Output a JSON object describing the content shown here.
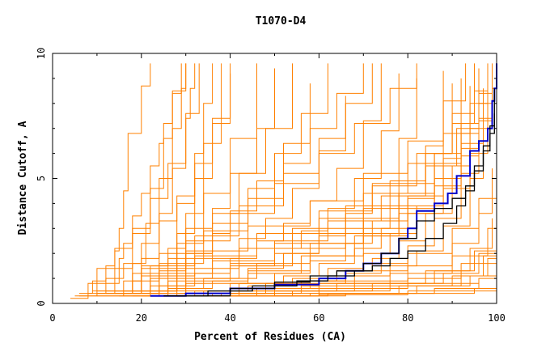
{
  "chart_data": {
    "type": "line",
    "title": "T1070-D4",
    "xlabel": "Percent of Residues (CA)",
    "ylabel": "Distance Cutoff, A",
    "xlim": [
      0,
      100
    ],
    "ylim": [
      0,
      10
    ],
    "x_ticks": [
      "0",
      "20",
      "40",
      "60",
      "80",
      "100"
    ],
    "y_ticks": [
      "0",
      "5",
      "10"
    ],
    "grid": false,
    "legend": "none",
    "colors": {
      "background_models": "#ff8000",
      "highlight_blue": "#0000cc",
      "highlight_black": "#000000"
    },
    "highlight_series": [
      {
        "color": "#0000cc",
        "x": [
          22,
          30,
          40,
          50,
          60,
          66,
          70,
          74,
          78,
          80,
          82,
          86,
          89,
          91,
          94,
          96,
          98,
          99,
          99.5,
          100
        ],
        "y": [
          0.3,
          0.4,
          0.6,
          0.75,
          1.0,
          1.3,
          1.6,
          2.0,
          2.6,
          3.0,
          3.7,
          4.0,
          4.4,
          5.1,
          6.1,
          6.5,
          7.0,
          8.1,
          8.6,
          9.6
        ]
      },
      {
        "color": "#000000",
        "x": [
          25,
          35,
          45,
          55,
          62,
          68,
          72,
          76,
          80,
          84,
          88,
          91,
          93,
          95,
          97,
          98.5,
          99.5
        ],
        "y": [
          0.3,
          0.5,
          0.7,
          0.9,
          1.1,
          1.3,
          1.5,
          1.8,
          2.1,
          2.6,
          3.2,
          3.9,
          4.5,
          5.3,
          6.1,
          6.8,
          7.6
        ]
      },
      {
        "color": "#000000",
        "x": [
          28,
          40,
          50,
          58,
          64,
          70,
          74,
          78,
          82,
          86,
          90,
          93,
          95,
          97,
          98.5,
          99.5
        ],
        "y": [
          0.3,
          0.6,
          0.85,
          1.1,
          1.3,
          1.6,
          2.0,
          2.6,
          3.3,
          3.8,
          4.2,
          4.7,
          5.5,
          6.3,
          7.1,
          8.6
        ]
      }
    ],
    "background_series": [
      {
        "x": [
          5,
          10,
          15,
          16,
          18,
          20,
          22,
          24,
          25,
          27,
          30
        ],
        "y": [
          0.3,
          0.8,
          1.8,
          2.4,
          3.5,
          4.4,
          5.5,
          6.4,
          7.2,
          8.5,
          9.6
        ]
      },
      {
        "x": [
          6,
          9,
          12,
          14,
          15,
          16,
          17,
          20,
          22
        ],
        "y": [
          0.4,
          0.9,
          1.5,
          2.1,
          3.0,
          4.5,
          6.8,
          8.7,
          9.6
        ]
      },
      {
        "x": [
          4,
          8,
          10,
          14,
          18,
          22,
          26,
          30,
          33
        ],
        "y": [
          0.2,
          0.8,
          1.4,
          2.2,
          3.0,
          4.2,
          5.6,
          7.6,
          9.6
        ]
      },
      {
        "x": [
          8,
          12,
          16,
          20,
          24,
          28,
          32,
          36,
          40
        ],
        "y": [
          0.4,
          1.0,
          1.6,
          2.4,
          3.3,
          4.3,
          5.6,
          7.2,
          9.2
        ]
      },
      {
        "x": [
          10,
          16,
          20,
          26,
          30,
          36,
          40,
          46,
          50
        ],
        "y": [
          0.3,
          0.9,
          1.5,
          2.2,
          3.0,
          3.8,
          5.2,
          7.0,
          9.4
        ]
      },
      {
        "x": [
          12,
          18,
          24,
          30,
          36,
          40,
          46,
          52,
          58
        ],
        "y": [
          0.4,
          0.9,
          1.3,
          2.0,
          2.8,
          3.7,
          4.9,
          6.4,
          8.8
        ]
      },
      {
        "x": [
          15,
          22,
          30,
          36,
          42,
          48,
          54,
          60,
          66
        ],
        "y": [
          0.3,
          0.7,
          1.2,
          1.8,
          2.6,
          3.4,
          4.6,
          6.1,
          8.3
        ]
      },
      {
        "x": [
          16,
          24,
          32,
          40,
          46,
          52,
          58,
          64,
          70,
          74
        ],
        "y": [
          0.3,
          0.7,
          1.2,
          1.8,
          2.5,
          3.2,
          4.1,
          5.4,
          7.3,
          9.6
        ]
      },
      {
        "x": [
          18,
          26,
          34,
          42,
          50,
          56,
          62,
          68,
          74,
          78
        ],
        "y": [
          0.3,
          0.6,
          1.0,
          1.5,
          2.2,
          2.9,
          3.8,
          5.0,
          6.9,
          9.2
        ]
      },
      {
        "x": [
          20,
          28,
          36,
          44,
          52,
          60,
          66,
          72,
          78,
          82
        ],
        "y": [
          0.3,
          0.6,
          0.9,
          1.4,
          2.0,
          2.7,
          3.6,
          4.8,
          6.6,
          9.0
        ]
      },
      {
        "x": [
          20,
          30,
          40,
          50,
          58,
          66,
          72,
          78,
          84,
          88
        ],
        "y": [
          0.3,
          0.5,
          0.8,
          1.2,
          1.7,
          2.4,
          3.3,
          4.4,
          6.3,
          9.3
        ]
      },
      {
        "x": [
          22,
          32,
          42,
          52,
          60,
          68,
          74,
          80,
          86,
          90
        ],
        "y": [
          0.3,
          0.5,
          0.8,
          1.1,
          1.6,
          2.2,
          3.0,
          4.2,
          6.0,
          8.8
        ]
      },
      {
        "x": [
          24,
          34,
          44,
          54,
          62,
          70,
          76,
          82,
          88,
          92
        ],
        "y": [
          0.3,
          0.5,
          0.7,
          1.0,
          1.4,
          2.0,
          2.8,
          3.9,
          5.8,
          9.0
        ]
      },
      {
        "x": [
          26,
          36,
          46,
          56,
          64,
          72,
          78,
          84,
          90,
          94
        ],
        "y": [
          0.3,
          0.4,
          0.6,
          0.9,
          1.3,
          1.8,
          2.5,
          3.6,
          5.5,
          8.7
        ]
      },
      {
        "x": [
          28,
          38,
          48,
          58,
          66,
          74,
          80,
          86,
          92,
          96
        ],
        "y": [
          0.3,
          0.4,
          0.6,
          0.9,
          1.2,
          1.6,
          2.3,
          3.4,
          5.2,
          9.4
        ]
      },
      {
        "x": [
          30,
          40,
          50,
          60,
          68,
          76,
          82,
          88,
          94,
          97
        ],
        "y": [
          0.3,
          0.4,
          0.6,
          0.8,
          1.1,
          1.5,
          2.1,
          3.1,
          5.0,
          8.4
        ]
      },
      {
        "x": [
          20,
          40,
          60,
          80,
          90,
          96,
          99
        ],
        "y": [
          0.3,
          0.5,
          0.9,
          1.5,
          2.4,
          3.6,
          5.4
        ]
      },
      {
        "x": [
          20,
          42,
          64,
          84,
          94,
          99
        ],
        "y": [
          0.3,
          0.5,
          0.8,
          1.3,
          2.2,
          3.4
        ]
      },
      {
        "x": [
          24,
          46,
          68,
          86,
          95,
          100
        ],
        "y": [
          0.3,
          0.5,
          0.8,
          1.3,
          2.1,
          4.6
        ]
      },
      {
        "x": [
          26,
          50,
          72,
          88,
          96,
          100
        ],
        "y": [
          0.3,
          0.5,
          0.8,
          1.2,
          2.0,
          3.2
        ]
      },
      {
        "x": [
          30,
          54,
          76,
          90,
          97,
          100
        ],
        "y": [
          0.3,
          0.5,
          0.7,
          1.1,
          1.9,
          2.8
        ]
      },
      {
        "x": [
          34,
          58,
          78,
          92,
          98,
          100
        ],
        "y": [
          0.3,
          0.4,
          0.7,
          1.1,
          1.8,
          2.4
        ]
      },
      {
        "x": [
          38,
          62,
          82,
          94,
          100
        ],
        "y": [
          0.3,
          0.4,
          0.7,
          1.1,
          2.0
        ]
      },
      {
        "x": [
          42,
          66,
          86,
          96,
          100
        ],
        "y": [
          0.3,
          0.4,
          0.6,
          1.0,
          1.6
        ]
      },
      {
        "x": [
          36,
          60,
          80,
          92,
          100
        ],
        "y": [
          0.4,
          0.6,
          1.0,
          1.6,
          3.0
        ]
      },
      {
        "x": [
          32,
          56,
          76,
          90,
          98,
          100
        ],
        "y": [
          0.4,
          0.7,
          1.2,
          1.9,
          3.0,
          4.0
        ]
      },
      {
        "x": [
          28,
          48,
          66,
          80,
          90,
          96,
          100
        ],
        "y": [
          0.4,
          0.8,
          1.3,
          2.0,
          3.0,
          4.2,
          5.6
        ]
      },
      {
        "x": [
          18,
          30,
          44,
          58,
          70,
          80,
          88,
          94,
          98
        ],
        "y": [
          0.4,
          0.8,
          1.3,
          1.9,
          2.7,
          3.6,
          4.6,
          6.0,
          8.0
        ]
      },
      {
        "x": [
          14,
          26,
          40,
          54,
          66,
          76,
          86,
          92,
          97
        ],
        "y": [
          0.4,
          0.9,
          1.5,
          2.2,
          3.0,
          3.9,
          5.0,
          6.4,
          8.6
        ]
      },
      {
        "x": [
          12,
          22,
          36,
          50,
          62,
          74,
          84,
          91,
          96
        ],
        "y": [
          0.4,
          1.0,
          1.7,
          2.5,
          3.3,
          4.3,
          5.5,
          7.0,
          9.2
        ]
      },
      {
        "x": [
          10,
          20,
          32,
          46,
          60,
          72,
          82,
          90,
          95
        ],
        "y": [
          0.4,
          1.1,
          1.9,
          2.8,
          3.7,
          4.7,
          6.0,
          7.6,
          9.6
        ]
      },
      {
        "x": [
          9,
          18,
          30,
          44,
          58,
          70,
          80,
          88,
          93
        ],
        "y": [
          0.5,
          1.2,
          2.1,
          3.1,
          4.1,
          5.2,
          6.5,
          8.1,
          9.6
        ]
      },
      {
        "x": [
          10,
          20,
          30,
          40,
          50,
          60,
          68,
          76,
          82
        ],
        "y": [
          0.5,
          1.4,
          2.5,
          3.6,
          4.8,
          6.0,
          7.2,
          8.6,
          9.6
        ]
      },
      {
        "x": [
          12,
          22,
          32,
          42,
          52,
          60,
          66,
          72
        ],
        "y": [
          0.5,
          1.5,
          2.7,
          3.9,
          5.2,
          6.6,
          8.0,
          9.6
        ]
      },
      {
        "x": [
          14,
          24,
          34,
          44,
          52,
          58,
          64,
          70
        ],
        "y": [
          0.5,
          1.6,
          2.9,
          4.2,
          5.6,
          7.0,
          8.4,
          9.6
        ]
      },
      {
        "x": [
          16,
          26,
          36,
          44,
          50,
          56,
          62
        ],
        "y": [
          0.5,
          1.8,
          3.2,
          4.6,
          6.0,
          7.6,
          9.6
        ]
      },
      {
        "x": [
          18,
          28,
          36,
          42,
          48,
          54
        ],
        "y": [
          0.5,
          2.0,
          3.6,
          5.2,
          7.0,
          9.6
        ]
      },
      {
        "x": [
          20,
          28,
          34,
          40,
          46
        ],
        "y": [
          0.5,
          2.4,
          4.4,
          6.6,
          9.6
        ]
      },
      {
        "x": [
          22,
          28,
          32,
          36,
          40
        ],
        "y": [
          0.5,
          2.8,
          5.0,
          7.4,
          9.6
        ]
      },
      {
        "x": [
          24,
          30,
          34,
          38
        ],
        "y": [
          0.5,
          3.6,
          6.4,
          9.6
        ]
      },
      {
        "x": [
          18,
          24,
          28,
          32,
          34,
          36
        ],
        "y": [
          0.4,
          2.0,
          4.0,
          6.0,
          8.0,
          9.6
        ]
      },
      {
        "x": [
          16,
          20,
          24,
          27,
          30,
          31,
          32
        ],
        "y": [
          0.4,
          1.8,
          3.6,
          5.4,
          7.4,
          8.6,
          9.6
        ]
      },
      {
        "x": [
          14,
          18,
          21,
          24,
          27,
          29,
          30
        ],
        "y": [
          0.4,
          1.6,
          3.2,
          5.0,
          7.0,
          8.6,
          9.6
        ]
      },
      {
        "x": [
          10,
          14,
          18,
          22,
          25,
          27,
          29
        ],
        "y": [
          0.4,
          1.4,
          2.8,
          4.6,
          6.6,
          8.4,
          9.6
        ]
      },
      {
        "x": [
          40,
          50,
          60,
          70,
          80,
          88,
          94,
          98
        ],
        "y": [
          1.6,
          2.4,
          3.4,
          4.4,
          5.6,
          6.8,
          8.0,
          9.2
        ]
      },
      {
        "x": [
          50,
          60,
          70,
          78,
          86,
          92,
          96,
          99
        ],
        "y": [
          2.0,
          2.8,
          3.8,
          4.8,
          6.0,
          7.2,
          8.4,
          9.6
        ]
      },
      {
        "x": [
          60,
          70,
          78,
          86,
          92,
          96,
          99
        ],
        "y": [
          2.4,
          3.4,
          4.4,
          5.6,
          6.8,
          8.0,
          9.4
        ]
      },
      {
        "x": [
          70,
          78,
          86,
          92,
          96,
          99,
          100
        ],
        "y": [
          2.8,
          3.8,
          5.0,
          6.2,
          7.4,
          8.6,
          9.6
        ]
      },
      {
        "x": [
          30,
          42,
          54,
          66,
          76,
          84,
          90,
          95,
          98
        ],
        "y": [
          1.4,
          2.2,
          3.0,
          3.9,
          4.9,
          6.0,
          7.2,
          8.5,
          9.6
        ]
      },
      {
        "x": [
          34,
          46,
          58,
          70,
          80,
          88,
          94,
          98
        ],
        "y": [
          1.0,
          1.6,
          2.4,
          3.3,
          4.3,
          5.5,
          7.0,
          8.8
        ]
      },
      {
        "x": [
          44,
          56,
          68,
          78,
          86,
          92,
          96,
          99
        ],
        "y": [
          1.2,
          1.9,
          2.7,
          3.6,
          4.7,
          5.9,
          7.3,
          9.0
        ]
      },
      {
        "x": [
          6,
          30,
          60,
          80,
          95,
          100
        ],
        "y": [
          0.3,
          0.3,
          0.4,
          0.5,
          0.6,
          0.7
        ]
      },
      {
        "x": [
          40,
          60,
          80,
          95,
          100
        ],
        "y": [
          0.3,
          0.35,
          0.4,
          0.5,
          1.3
        ]
      },
      {
        "x": [
          86,
          96
        ],
        "y": [
          0.8,
          0.8
        ]
      }
    ]
  }
}
